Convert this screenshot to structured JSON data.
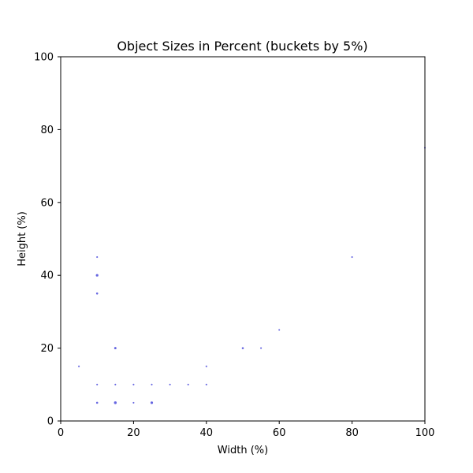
{
  "chart_data": {
    "type": "scatter",
    "title": "Object Sizes in Percent  (buckets by 5%)",
    "xlabel": "Width (%)",
    "ylabel": "Height (%)",
    "xlim": [
      0,
      100
    ],
    "ylim": [
      0,
      100
    ],
    "xticks": [
      0,
      20,
      40,
      60,
      80,
      100
    ],
    "yticks": [
      0,
      20,
      40,
      60,
      80,
      100
    ],
    "grid": false,
    "marker_color": "#4b4bdc",
    "points": [
      {
        "x": 5,
        "y": 15,
        "count": 1
      },
      {
        "x": 10,
        "y": 45,
        "count": 1
      },
      {
        "x": 10,
        "y": 40,
        "count": 4
      },
      {
        "x": 10,
        "y": 35,
        "count": 2
      },
      {
        "x": 10,
        "y": 10,
        "count": 1
      },
      {
        "x": 10,
        "y": 5,
        "count": 2
      },
      {
        "x": 15,
        "y": 20,
        "count": 3
      },
      {
        "x": 15,
        "y": 10,
        "count": 1
      },
      {
        "x": 15,
        "y": 5,
        "count": 5
      },
      {
        "x": 20,
        "y": 10,
        "count": 1
      },
      {
        "x": 20,
        "y": 5,
        "count": 1
      },
      {
        "x": 25,
        "y": 10,
        "count": 1
      },
      {
        "x": 25,
        "y": 5,
        "count": 4
      },
      {
        "x": 30,
        "y": 10,
        "count": 1
      },
      {
        "x": 35,
        "y": 10,
        "count": 1
      },
      {
        "x": 40,
        "y": 15,
        "count": 1
      },
      {
        "x": 40,
        "y": 10,
        "count": 1
      },
      {
        "x": 50,
        "y": 20,
        "count": 2
      },
      {
        "x": 55,
        "y": 20,
        "count": 1
      },
      {
        "x": 60,
        "y": 25,
        "count": 1
      },
      {
        "x": 80,
        "y": 45,
        "count": 1
      },
      {
        "x": 100,
        "y": 75,
        "count": 1
      }
    ]
  }
}
